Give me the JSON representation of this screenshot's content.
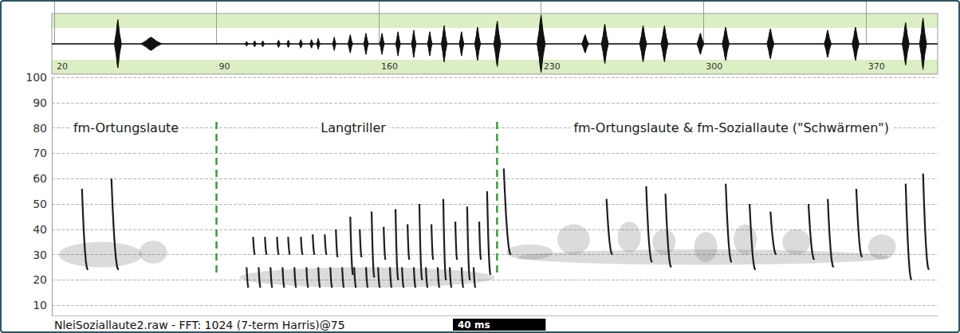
{
  "chart_data": [
    {
      "type": "waveform",
      "xlim": [
        19,
        401
      ],
      "xticks": [
        20,
        90,
        160,
        230,
        300,
        370
      ],
      "ylim": [
        -1,
        1
      ],
      "tick_labels": "x",
      "color": "#111111",
      "bursts": [
        {
          "t": 47.5,
          "amp": 0.8,
          "dur": 3
        },
        {
          "t": 61.9,
          "amp": 0.22,
          "dur": 9
        },
        {
          "t": 103,
          "amp": 0.08,
          "dur": 1.5
        },
        {
          "t": 106.5,
          "amp": 0.1,
          "dur": 1.5
        },
        {
          "t": 110,
          "amp": 0.1,
          "dur": 1.5
        },
        {
          "t": 116.8,
          "amp": 0.12,
          "dur": 1.5
        },
        {
          "t": 121,
          "amp": 0.12,
          "dur": 1.5
        },
        {
          "t": 126.4,
          "amp": 0.14,
          "dur": 1.5
        },
        {
          "t": 131,
          "amp": 0.14,
          "dur": 1.5
        },
        {
          "t": 133.9,
          "amp": 0.18,
          "dur": 1.5
        },
        {
          "t": 140.8,
          "amp": 0.22,
          "dur": 1.5
        },
        {
          "t": 147.7,
          "amp": 0.3,
          "dur": 2
        },
        {
          "t": 154.5,
          "amp": 0.35,
          "dur": 2
        },
        {
          "t": 161.4,
          "amp": 0.35,
          "dur": 2
        },
        {
          "t": 168.3,
          "amp": 0.4,
          "dur": 2
        },
        {
          "t": 175.1,
          "amp": 0.45,
          "dur": 2
        },
        {
          "t": 182,
          "amp": 0.4,
          "dur": 2
        },
        {
          "t": 188.2,
          "amp": 0.6,
          "dur": 2.5
        },
        {
          "t": 195.7,
          "amp": 0.4,
          "dur": 2
        },
        {
          "t": 202.6,
          "amp": 0.55,
          "dur": 2.5
        },
        {
          "t": 211.1,
          "amp": 0.75,
          "dur": 3
        },
        {
          "t": 230,
          "amp": 0.95,
          "dur": 3.5
        },
        {
          "t": 249,
          "amp": 0.3,
          "dur": 3
        },
        {
          "t": 257.5,
          "amp": 0.65,
          "dur": 3
        },
        {
          "t": 274,
          "amp": 0.6,
          "dur": 3
        },
        {
          "t": 283.2,
          "amp": 0.6,
          "dur": 3
        },
        {
          "t": 298.7,
          "amp": 0.35,
          "dur": 3
        },
        {
          "t": 309.6,
          "amp": 0.55,
          "dur": 3
        },
        {
          "t": 328.9,
          "amp": 0.5,
          "dur": 3
        },
        {
          "t": 353.6,
          "amp": 0.45,
          "dur": 3
        },
        {
          "t": 365.6,
          "amp": 0.55,
          "dur": 3
        },
        {
          "t": 387.2,
          "amp": 0.7,
          "dur": 3
        },
        {
          "t": 394.7,
          "amp": 0.85,
          "dur": 3
        }
      ]
    },
    {
      "type": "spectrogram",
      "xlim": [
        19,
        401
      ],
      "ylim": [
        6,
        100
      ],
      "yticks": [
        10,
        20,
        30,
        40,
        50,
        60,
        70,
        80,
        90,
        100
      ],
      "grid": true,
      "tick_labels": "y",
      "color": "#1e1e1e",
      "annotations": [
        {
          "text": "fm-Ortungslaute",
          "t": 51,
          "f": 80
        },
        {
          "text": "Langtriller",
          "t": 149,
          "f": 80
        },
        {
          "text": "fm-Ortungslaute & fm-Soziallaute (\"Schwärmen\")",
          "t": 312,
          "f": 80
        }
      ],
      "dividers": [
        {
          "t": 90,
          "f_low": 23,
          "f_high": 83
        },
        {
          "t": 211,
          "f_low": 23,
          "f_high": 83
        }
      ],
      "calls": [
        {
          "t": 32.0,
          "f_start": 56,
          "f_end": 24,
          "dur": 2.5
        },
        {
          "t": 44.7,
          "f_start": 60,
          "f_end": 24,
          "dur": 3
        },
        {
          "t": 105.8,
          "f_start": 37,
          "f_end": 30,
          "dur": 0.8
        },
        {
          "t": 110.9,
          "f_start": 37,
          "f_end": 30,
          "dur": 0.8
        },
        {
          "t": 116.1,
          "f_start": 37,
          "f_end": 30,
          "dur": 0.8
        },
        {
          "t": 120.9,
          "f_start": 37,
          "f_end": 30,
          "dur": 0.8
        },
        {
          "t": 126.4,
          "f_start": 37,
          "f_end": 30,
          "dur": 0.8
        },
        {
          "t": 131.5,
          "f_start": 38,
          "f_end": 30,
          "dur": 0.8
        },
        {
          "t": 136.7,
          "f_start": 38,
          "f_end": 30,
          "dur": 0.8
        },
        {
          "t": 141.5,
          "f_start": 40,
          "f_end": 29,
          "dur": 0.8
        },
        {
          "t": 151.8,
          "f_start": 40,
          "f_end": 29,
          "dur": 0.8
        },
        {
          "t": 162.1,
          "f_start": 41,
          "f_end": 28,
          "dur": 0.8
        },
        {
          "t": 172.4,
          "f_start": 42,
          "f_end": 28,
          "dur": 0.8
        },
        {
          "t": 182.7,
          "f_start": 42,
          "f_end": 28,
          "dur": 0.8
        },
        {
          "t": 193.0,
          "f_start": 43,
          "f_end": 28,
          "dur": 0.8
        },
        {
          "t": 203.3,
          "f_start": 43,
          "f_end": 28,
          "dur": 0.8
        },
        {
          "t": 147.7,
          "f_start": 45,
          "f_end": 22,
          "dur": 1.2
        },
        {
          "t": 156.9,
          "f_start": 47,
          "f_end": 21,
          "dur": 1.2
        },
        {
          "t": 167.2,
          "f_start": 48,
          "f_end": 20,
          "dur": 1.2
        },
        {
          "t": 177.5,
          "f_start": 50,
          "f_end": 20,
          "dur": 1.2
        },
        {
          "t": 187.8,
          "f_start": 52,
          "f_end": 20,
          "dur": 1.2
        },
        {
          "t": 198.1,
          "f_start": 49,
          "f_end": 20,
          "dur": 1.2
        },
        {
          "t": 206.7,
          "f_start": 55,
          "f_end": 22,
          "dur": 1.5
        },
        {
          "t": 103.0,
          "f_start": 25,
          "f_end": 17,
          "dur": 0.8
        },
        {
          "t": 108.2,
          "f_start": 25,
          "f_end": 17,
          "dur": 0.8
        },
        {
          "t": 113.3,
          "f_start": 25,
          "f_end": 17,
          "dur": 0.8
        },
        {
          "t": 118.5,
          "f_start": 25,
          "f_end": 17,
          "dur": 0.8
        },
        {
          "t": 123.6,
          "f_start": 25,
          "f_end": 17,
          "dur": 0.8
        },
        {
          "t": 128.8,
          "f_start": 25,
          "f_end": 17,
          "dur": 0.8
        },
        {
          "t": 133.9,
          "f_start": 25,
          "f_end": 17,
          "dur": 0.8
        },
        {
          "t": 139.1,
          "f_start": 25,
          "f_end": 17,
          "dur": 0.8
        },
        {
          "t": 144.2,
          "f_start": 25,
          "f_end": 17,
          "dur": 0.8
        },
        {
          "t": 149.4,
          "f_start": 25,
          "f_end": 17,
          "dur": 0.8
        },
        {
          "t": 154.5,
          "f_start": 25,
          "f_end": 17,
          "dur": 0.8
        },
        {
          "t": 159.7,
          "f_start": 25,
          "f_end": 17,
          "dur": 0.8
        },
        {
          "t": 164.8,
          "f_start": 25,
          "f_end": 17,
          "dur": 0.8
        },
        {
          "t": 170.0,
          "f_start": 25,
          "f_end": 17,
          "dur": 0.8
        },
        {
          "t": 175.1,
          "f_start": 25,
          "f_end": 17,
          "dur": 0.8
        },
        {
          "t": 180.3,
          "f_start": 25,
          "f_end": 17,
          "dur": 0.8
        },
        {
          "t": 185.4,
          "f_start": 25,
          "f_end": 17,
          "dur": 0.8
        },
        {
          "t": 190.6,
          "f_start": 25,
          "f_end": 17,
          "dur": 0.8
        },
        {
          "t": 195.7,
          "f_start": 25,
          "f_end": 17,
          "dur": 0.8
        },
        {
          "t": 200.9,
          "f_start": 25,
          "f_end": 17,
          "dur": 0.8
        },
        {
          "t": 213.9,
          "f_start": 64,
          "f_end": 30,
          "dur": 3
        },
        {
          "t": 258.2,
          "f_start": 52,
          "f_end": 30,
          "dur": 2.5
        },
        {
          "t": 275.3,
          "f_start": 57,
          "f_end": 27,
          "dur": 2.5
        },
        {
          "t": 283.6,
          "f_start": 54,
          "f_end": 25,
          "dur": 2.5
        },
        {
          "t": 309.6,
          "f_start": 58,
          "f_end": 27,
          "dur": 2.5
        },
        {
          "t": 319.9,
          "f_start": 50,
          "f_end": 24,
          "dur": 2.5
        },
        {
          "t": 328.9,
          "f_start": 47,
          "f_end": 30,
          "dur": 2.5
        },
        {
          "t": 345.3,
          "f_start": 50,
          "f_end": 28,
          "dur": 2.5
        },
        {
          "t": 353.6,
          "f_start": 52,
          "f_end": 25,
          "dur": 2.5
        },
        {
          "t": 365.9,
          "f_start": 56,
          "f_end": 29,
          "dur": 2.5
        },
        {
          "t": 387.2,
          "f_start": 58,
          "f_end": 20,
          "dur": 2.5
        },
        {
          "t": 394.7,
          "f_start": 62,
          "f_end": 24,
          "dur": 2.5
        }
      ],
      "noise": [
        {
          "t": 40,
          "f": 30,
          "dur": 36,
          "bw": 10
        },
        {
          "t": 62.7,
          "f": 31,
          "dur": 12,
          "bw": 9
        },
        {
          "t": 155,
          "f": 21,
          "dur": 110,
          "bw": 8
        },
        {
          "t": 225,
          "f": 31,
          "dur": 20,
          "bw": 6
        },
        {
          "t": 244,
          "f": 36,
          "dur": 14,
          "bw": 12
        },
        {
          "t": 268,
          "f": 37,
          "dur": 10,
          "bw": 12
        },
        {
          "t": 283,
          "f": 35,
          "dur": 10,
          "bw": 10
        },
        {
          "t": 301,
          "f": 33,
          "dur": 10,
          "bw": 12
        },
        {
          "t": 318,
          "f": 36,
          "dur": 10,
          "bw": 12
        },
        {
          "t": 340,
          "f": 35,
          "dur": 12,
          "bw": 10
        },
        {
          "t": 377,
          "f": 33,
          "dur": 12,
          "bw": 10
        },
        {
          "t": 300,
          "f": 29,
          "dur": 160,
          "bw": 6
        }
      ],
      "caption": "NleiSoziallaute2.raw - FFT: 1024 (7-term Harris)@75",
      "scale_bar": {
        "value": 40,
        "label": "40 ms"
      }
    }
  ]
}
